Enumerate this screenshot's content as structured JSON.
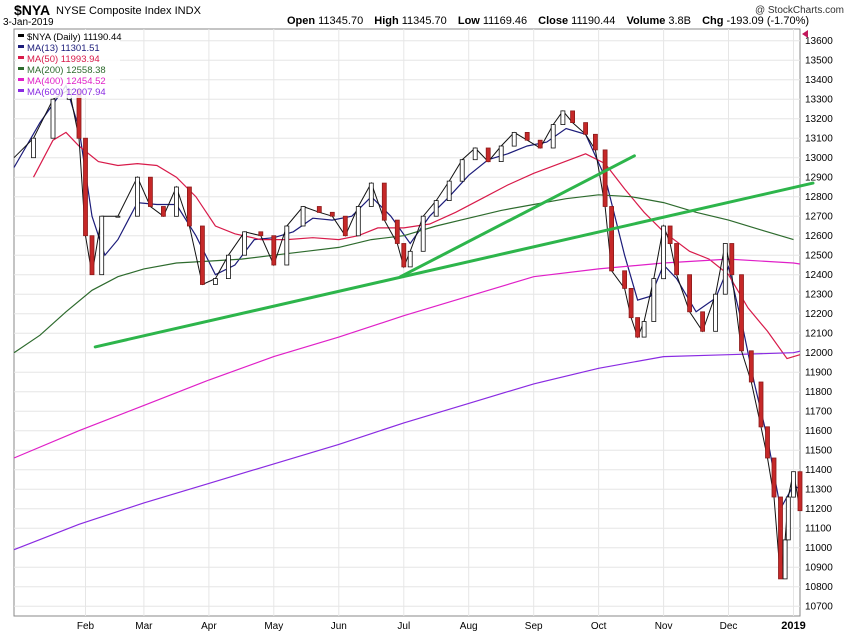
{
  "header": {
    "symbol": "$NYA",
    "index_name": "NYSE Composite Index",
    "exchange": "INDX",
    "date": "3-Jan-2019",
    "brand": "@ StockCharts.com",
    "open_label": "Open",
    "open": "11345.70",
    "high_label": "High",
    "high": "11345.70",
    "low_label": "Low",
    "low": "11169.46",
    "close_label": "Close",
    "close": "11190.44",
    "volume_label": "Volume",
    "volume": "3.8B",
    "chg_label": "Chg",
    "chg": "-193.09 (-1.70%)"
  },
  "legend": [
    {
      "label": "$NYA (Daily) 11190.44",
      "color": "#000000"
    },
    {
      "label": "MA(13) 11301.51",
      "color": "#1c1c7a"
    },
    {
      "label": "MA(50) 11993.94",
      "color": "#d81b4a"
    },
    {
      "label": "MA(200) 12558.38",
      "color": "#2e6b2e"
    },
    {
      "label": "MA(400) 12454.52",
      "color": "#e020c8"
    },
    {
      "label": "MA(600) 12007.94",
      "color": "#8a2be2"
    }
  ],
  "chart_data": {
    "type": "line",
    "title": "$NYA NYSE Composite Index INDX",
    "ylim": [
      10650,
      13660
    ],
    "y_ticks": [
      10700,
      10800,
      10900,
      11000,
      11100,
      11200,
      11300,
      11400,
      11500,
      11600,
      11700,
      11800,
      11900,
      12000,
      12100,
      12200,
      12300,
      12400,
      12500,
      12600,
      12700,
      12800,
      12900,
      13000,
      13100,
      13200,
      13300,
      13400,
      13500,
      13600
    ],
    "x_labels": [
      {
        "label": "Feb",
        "t": 1.1,
        "bold": false
      },
      {
        "label": "Mar",
        "t": 2.0,
        "bold": false
      },
      {
        "label": "Apr",
        "t": 3.0,
        "bold": false
      },
      {
        "label": "May",
        "t": 4.0,
        "bold": false
      },
      {
        "label": "Jun",
        "t": 5.0,
        "bold": false
      },
      {
        "label": "Jul",
        "t": 6.0,
        "bold": false
      },
      {
        "label": "Aug",
        "t": 7.0,
        "bold": false
      },
      {
        "label": "Sep",
        "t": 8.0,
        "bold": false
      },
      {
        "label": "Oct",
        "t": 9.0,
        "bold": false
      },
      {
        "label": "Nov",
        "t": 10.0,
        "bold": false
      },
      {
        "label": "Dec",
        "t": 11.0,
        "bold": false
      },
      {
        "label": "2019",
        "t": 12.0,
        "bold": true
      }
    ],
    "price": [
      [
        0,
        13000
      ],
      [
        0.3,
        13100
      ],
      [
        0.6,
        13300
      ],
      [
        0.85,
        13350
      ],
      [
        1.0,
        13100
      ],
      [
        1.1,
        12600
      ],
      [
        1.2,
        12400
      ],
      [
        1.35,
        12700
      ],
      [
        1.6,
        12700
      ],
      [
        1.9,
        12900
      ],
      [
        2.1,
        12750
      ],
      [
        2.3,
        12700
      ],
      [
        2.5,
        12850
      ],
      [
        2.7,
        12650
      ],
      [
        2.9,
        12350
      ],
      [
        3.1,
        12380
      ],
      [
        3.3,
        12500
      ],
      [
        3.55,
        12620
      ],
      [
        3.8,
        12600
      ],
      [
        4.0,
        12450
      ],
      [
        4.2,
        12650
      ],
      [
        4.45,
        12750
      ],
      [
        4.7,
        12720
      ],
      [
        4.9,
        12700
      ],
      [
        5.1,
        12600
      ],
      [
        5.3,
        12750
      ],
      [
        5.5,
        12870
      ],
      [
        5.7,
        12680
      ],
      [
        5.9,
        12560
      ],
      [
        6.0,
        12440
      ],
      [
        6.1,
        12520
      ],
      [
        6.3,
        12700
      ],
      [
        6.5,
        12780
      ],
      [
        6.7,
        12880
      ],
      [
        6.9,
        12990
      ],
      [
        7.1,
        13050
      ],
      [
        7.3,
        12980
      ],
      [
        7.5,
        13060
      ],
      [
        7.7,
        13130
      ],
      [
        7.9,
        13090
      ],
      [
        8.1,
        13050
      ],
      [
        8.3,
        13170
      ],
      [
        8.45,
        13240
      ],
      [
        8.6,
        13180
      ],
      [
        8.8,
        13120
      ],
      [
        8.95,
        13040
      ],
      [
        9.1,
        12750
      ],
      [
        9.2,
        12420
      ],
      [
        9.4,
        12330
      ],
      [
        9.5,
        12180
      ],
      [
        9.6,
        12080
      ],
      [
        9.7,
        12160
      ],
      [
        9.85,
        12380
      ],
      [
        10.0,
        12650
      ],
      [
        10.1,
        12560
      ],
      [
        10.2,
        12400
      ],
      [
        10.4,
        12210
      ],
      [
        10.6,
        12110
      ],
      [
        10.8,
        12300
      ],
      [
        10.95,
        12560
      ],
      [
        11.05,
        12400
      ],
      [
        11.2,
        12010
      ],
      [
        11.35,
        11850
      ],
      [
        11.5,
        11620
      ],
      [
        11.6,
        11460
      ],
      [
        11.7,
        11260
      ],
      [
        11.8,
        10840
      ],
      [
        11.87,
        11040
      ],
      [
        11.92,
        11260
      ],
      [
        12.0,
        11390
      ],
      [
        12.1,
        11190
      ]
    ],
    "series": [
      {
        "name": "MA(13)",
        "color": "#1c1c7a",
        "width": 1.2,
        "values": [
          [
            0,
            12950
          ],
          [
            0.4,
            13180
          ],
          [
            0.8,
            13370
          ],
          [
            1.0,
            13150
          ],
          [
            1.2,
            12700
          ],
          [
            1.4,
            12500
          ],
          [
            1.6,
            12580
          ],
          [
            1.9,
            12770
          ],
          [
            2.2,
            12760
          ],
          [
            2.5,
            12760
          ],
          [
            2.8,
            12600
          ],
          [
            3.1,
            12400
          ],
          [
            3.4,
            12450
          ],
          [
            3.7,
            12580
          ],
          [
            4.0,
            12590
          ],
          [
            4.3,
            12620
          ],
          [
            4.6,
            12690
          ],
          [
            4.9,
            12680
          ],
          [
            5.2,
            12700
          ],
          [
            5.5,
            12800
          ],
          [
            5.8,
            12700
          ],
          [
            6.1,
            12560
          ],
          [
            6.4,
            12700
          ],
          [
            6.7,
            12800
          ],
          [
            7.0,
            12910
          ],
          [
            7.3,
            12990
          ],
          [
            7.6,
            13020
          ],
          [
            7.9,
            13060
          ],
          [
            8.2,
            13080
          ],
          [
            8.5,
            13150
          ],
          [
            8.8,
            13120
          ],
          [
            9.1,
            12900
          ],
          [
            9.4,
            12500
          ],
          [
            9.6,
            12270
          ],
          [
            9.8,
            12290
          ],
          [
            10.0,
            12450
          ],
          [
            10.2,
            12380
          ],
          [
            10.5,
            12210
          ],
          [
            10.8,
            12280
          ],
          [
            11.0,
            12440
          ],
          [
            11.2,
            12160
          ],
          [
            11.4,
            11840
          ],
          [
            11.6,
            11560
          ],
          [
            11.8,
            11200
          ],
          [
            12.0,
            11320
          ],
          [
            12.1,
            11300
          ]
        ]
      },
      {
        "name": "MA(50)",
        "color": "#d81b4a",
        "width": 1.2,
        "values": [
          [
            0.3,
            12900
          ],
          [
            0.6,
            13090
          ],
          [
            0.8,
            13130
          ],
          [
            1.0,
            13060
          ],
          [
            1.3,
            12980
          ],
          [
            1.6,
            12960
          ],
          [
            1.9,
            12970
          ],
          [
            2.2,
            12960
          ],
          [
            2.5,
            12900
          ],
          [
            2.8,
            12800
          ],
          [
            3.1,
            12650
          ],
          [
            3.4,
            12610
          ],
          [
            3.8,
            12580
          ],
          [
            4.2,
            12580
          ],
          [
            4.6,
            12590
          ],
          [
            5.0,
            12580
          ],
          [
            5.3,
            12600
          ],
          [
            5.6,
            12640
          ],
          [
            6.0,
            12640
          ],
          [
            6.4,
            12660
          ],
          [
            6.8,
            12720
          ],
          [
            7.2,
            12790
          ],
          [
            7.6,
            12860
          ],
          [
            8.0,
            12920
          ],
          [
            8.4,
            12970
          ],
          [
            8.8,
            13020
          ],
          [
            9.1,
            12970
          ],
          [
            9.4,
            12840
          ],
          [
            9.7,
            12720
          ],
          [
            10.0,
            12620
          ],
          [
            10.4,
            12520
          ],
          [
            10.7,
            12480
          ],
          [
            11.0,
            12400
          ],
          [
            11.3,
            12230
          ],
          [
            11.6,
            12110
          ],
          [
            11.9,
            11970
          ],
          [
            12.1,
            11990
          ]
        ]
      },
      {
        "name": "MA(200)",
        "color": "#2e6b2e",
        "width": 1.2,
        "values": [
          [
            0,
            12000
          ],
          [
            0.4,
            12090
          ],
          [
            0.8,
            12210
          ],
          [
            1.2,
            12320
          ],
          [
            1.6,
            12390
          ],
          [
            2.0,
            12430
          ],
          [
            2.5,
            12460
          ],
          [
            3.0,
            12470
          ],
          [
            3.5,
            12480
          ],
          [
            4.0,
            12500
          ],
          [
            4.5,
            12520
          ],
          [
            5.0,
            12540
          ],
          [
            5.5,
            12580
          ],
          [
            6.0,
            12600
          ],
          [
            6.5,
            12650
          ],
          [
            7.0,
            12690
          ],
          [
            7.5,
            12730
          ],
          [
            8.0,
            12760
          ],
          [
            8.5,
            12790
          ],
          [
            9.0,
            12810
          ],
          [
            9.5,
            12800
          ],
          [
            10.0,
            12770
          ],
          [
            10.5,
            12720
          ],
          [
            11.0,
            12680
          ],
          [
            11.5,
            12630
          ],
          [
            12.0,
            12580
          ]
        ]
      },
      {
        "name": "MA(400)",
        "color": "#e020c8",
        "width": 1.2,
        "values": [
          [
            0,
            11460
          ],
          [
            1,
            11600
          ],
          [
            2,
            11730
          ],
          [
            3,
            11860
          ],
          [
            4,
            11980
          ],
          [
            5,
            12080
          ],
          [
            6,
            12190
          ],
          [
            7,
            12290
          ],
          [
            8,
            12390
          ],
          [
            9,
            12430
          ],
          [
            10,
            12460
          ],
          [
            11,
            12480
          ],
          [
            12,
            12460
          ],
          [
            12.1,
            12455
          ]
        ]
      },
      {
        "name": "MA(600)",
        "color": "#8a2be2",
        "width": 1.2,
        "values": [
          [
            0,
            10990
          ],
          [
            1,
            11120
          ],
          [
            2,
            11230
          ],
          [
            3,
            11330
          ],
          [
            4,
            11430
          ],
          [
            5,
            11530
          ],
          [
            6,
            11640
          ],
          [
            7,
            11740
          ],
          [
            8,
            11840
          ],
          [
            9,
            11920
          ],
          [
            10,
            11980
          ],
          [
            11,
            11990
          ],
          [
            12,
            12000
          ],
          [
            12.1,
            12008
          ]
        ]
      }
    ],
    "trendlines": [
      {
        "name": "Lower support trendline",
        "color": "#2db54b",
        "points": [
          [
            1.25,
            12030
          ],
          [
            12.3,
            12870
          ]
        ]
      },
      {
        "name": "Steep trendline",
        "color": "#2db54b",
        "points": [
          [
            5.95,
            12390
          ],
          [
            9.55,
            13010
          ]
        ]
      }
    ]
  }
}
